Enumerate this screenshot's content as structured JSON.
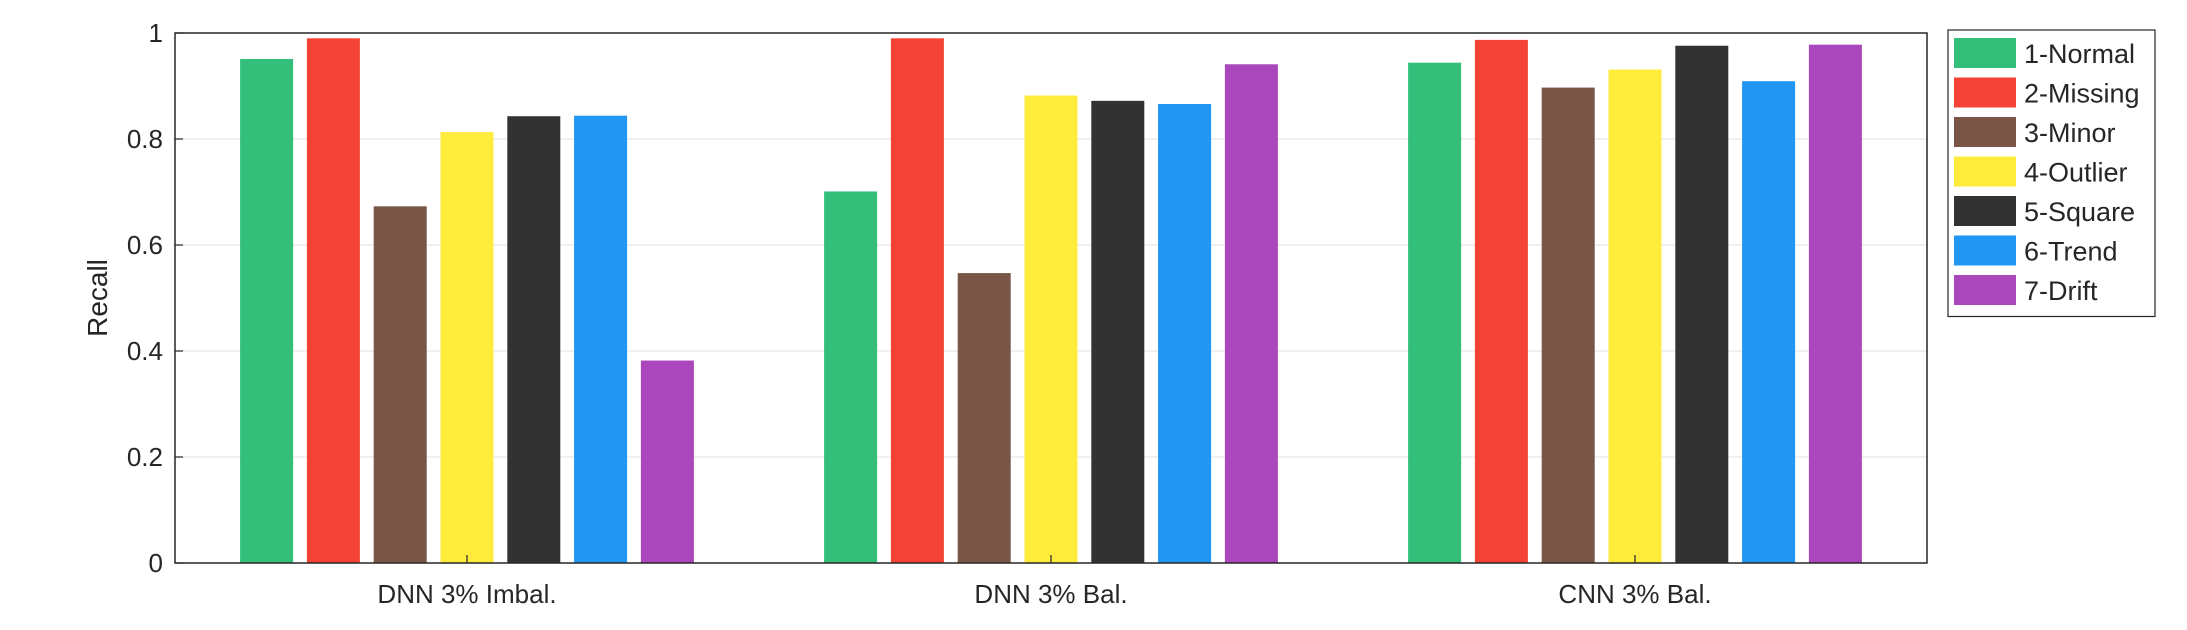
{
  "chart_data": {
    "type": "bar",
    "title": "",
    "xlabel": "",
    "ylabel": "Recall",
    "ylim": [
      0,
      1
    ],
    "yticks": [
      0,
      0.2,
      0.4,
      0.6,
      0.8,
      1
    ],
    "ytick_labels": [
      "0",
      "0.2",
      "0.4",
      "0.6",
      "0.8",
      "1"
    ],
    "grid": "horizontal",
    "legend_position": "right",
    "categories": [
      "DNN 3% Imbal.",
      "DNN 3% Bal.",
      "CNN 3% Bal."
    ],
    "series": [
      {
        "name": "1-Normal",
        "color": "#33be7a",
        "values": [
          0.951,
          0.701,
          0.944
        ]
      },
      {
        "name": "2-Missing",
        "color": "#f44336",
        "values": [
          0.99,
          0.99,
          0.987
        ]
      },
      {
        "name": "3-Minor",
        "color": "#795548",
        "values": [
          0.673,
          0.547,
          0.897
        ]
      },
      {
        "name": "4-Outlier",
        "color": "#ffeb3b",
        "values": [
          0.813,
          0.882,
          0.931
        ]
      },
      {
        "name": "5-Square",
        "color": "#323232",
        "values": [
          0.843,
          0.872,
          0.976
        ]
      },
      {
        "name": "6-Trend",
        "color": "#2196f3",
        "values": [
          0.844,
          0.866,
          0.909
        ]
      },
      {
        "name": "7-Drift",
        "color": "#ab47bc",
        "values": [
          0.382,
          0.941,
          0.978
        ]
      }
    ]
  }
}
